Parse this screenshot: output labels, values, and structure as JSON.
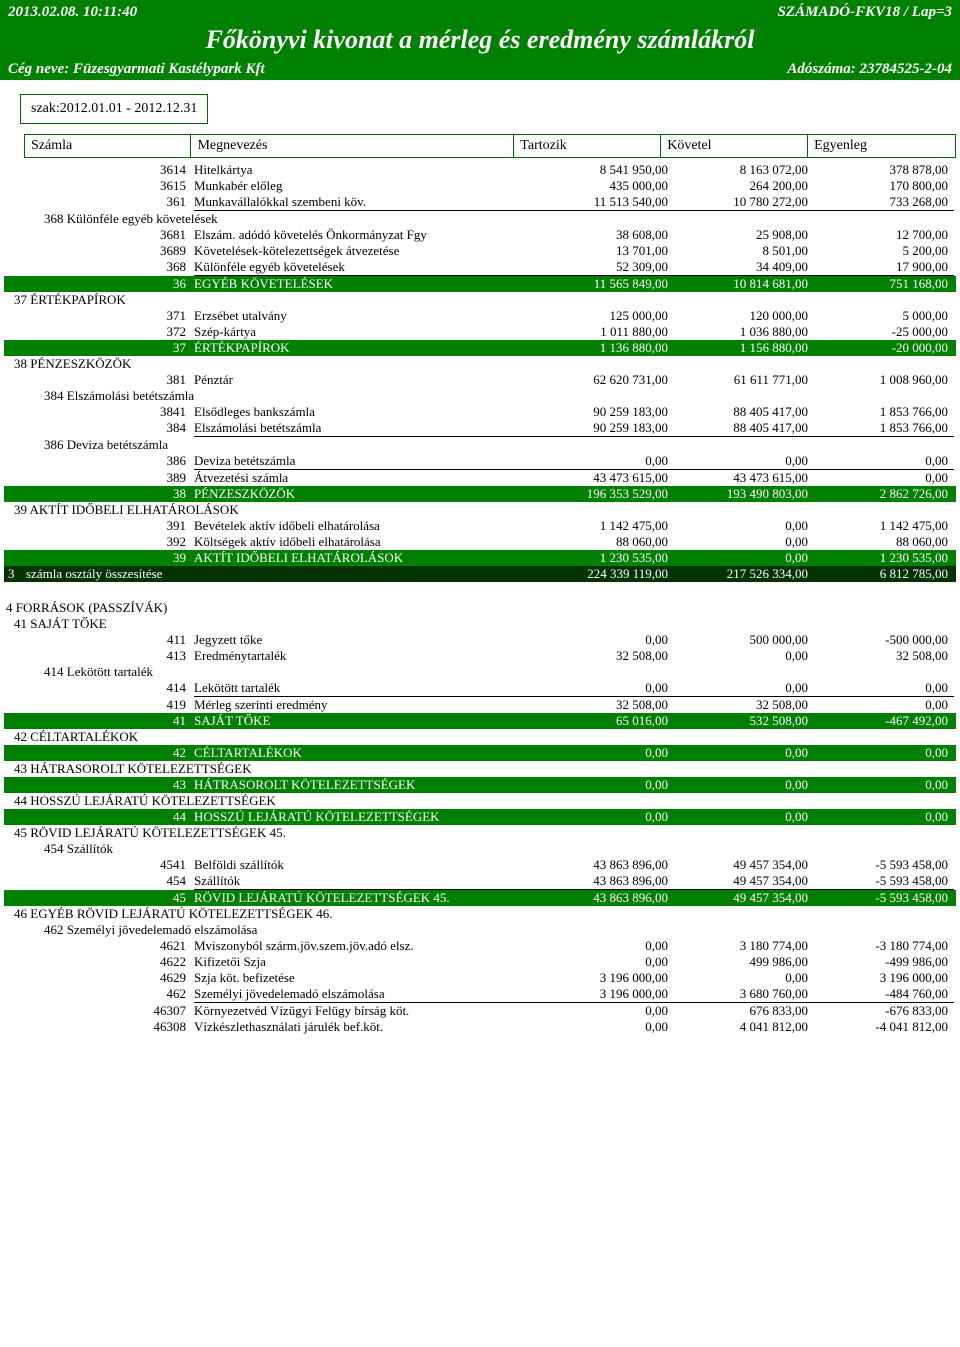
{
  "header": {
    "timestamp": "2013.02.08. 10:11:40",
    "doc_id": "SZÁMADÓ-FKV18 / Lap=3",
    "title": "Főkönyvi kivonat a mérleg és eredmény számlákról",
    "company_label": "Cég neve: Füzesgyarmati Kastélypark Kft",
    "tax_label": "Adószáma: 23784525-2-04"
  },
  "period": "szak:2012.01.01 - 2012.12.31",
  "columns": {
    "c1": "Számla",
    "c2": "Megnevezés",
    "c3": "Tartozik",
    "c4": "Követel",
    "c5": "Egyenleg"
  },
  "rows": [
    {
      "type": "data",
      "code": "3614",
      "name": "Hitelkártya",
      "t": "8 541 950,00",
      "k": "8 163 072,00",
      "e": "378 878,00"
    },
    {
      "type": "data",
      "code": "3615",
      "name": "Munkabér előleg",
      "t": "435 000,00",
      "k": "264 200,00",
      "e": "170 800,00"
    },
    {
      "type": "data",
      "code": "361",
      "name": "Munkavállalókkal szembeni köv.",
      "t": "11 513 540,00",
      "k": "10 780 272,00",
      "e": "733 268,00",
      "ul": true
    },
    {
      "type": "group",
      "label": "368 Különféle egyéb követelések"
    },
    {
      "type": "data",
      "code": "3681",
      "name": "Elszám. adódó követelés Önkormányzat Fgy",
      "t": "38 608,00",
      "k": "25 908,00",
      "e": "12 700,00"
    },
    {
      "type": "data",
      "code": "3689",
      "name": "Követelések-kötelezettségek átvezetése",
      "t": "13 701,00",
      "k": "8 501,00",
      "e": "5 200,00"
    },
    {
      "type": "data",
      "code": "368",
      "name": "Különféle egyéb követelések",
      "t": "52 309,00",
      "k": "34 409,00",
      "e": "17 900,00",
      "ul": true
    },
    {
      "type": "subgreen",
      "code": "36",
      "name": "EGYÉB KÖVETELÉSEK",
      "t": "11 565 849,00",
      "k": "10 814 681,00",
      "e": "751 168,00"
    },
    {
      "type": "section",
      "label": "37 ÉRTÉKPAPÍROK"
    },
    {
      "type": "data",
      "code": "371",
      "name": "Erzsébet utalvány",
      "t": "125 000,00",
      "k": "120 000,00",
      "e": "5 000,00"
    },
    {
      "type": "data",
      "code": "372",
      "name": "Szép-kártya",
      "t": "1 011 880,00",
      "k": "1 036 880,00",
      "e": "-25 000,00"
    },
    {
      "type": "subgreen",
      "code": "37",
      "name": "ÉRTÉKPAPÍROK",
      "t": "1 136 880,00",
      "k": "1 156 880,00",
      "e": "-20 000,00"
    },
    {
      "type": "section",
      "label": "38 PÉNZESZKÖZÖK"
    },
    {
      "type": "data",
      "code": "381",
      "name": "Pénztár",
      "t": "62 620 731,00",
      "k": "61 611 771,00",
      "e": "1 008 960,00"
    },
    {
      "type": "group",
      "label": "384 Elszámolási betétszámla"
    },
    {
      "type": "data",
      "code": "3841",
      "name": "Elsődleges bankszámla",
      "t": "90 259 183,00",
      "k": "88 405 417,00",
      "e": "1 853 766,00"
    },
    {
      "type": "data",
      "code": "384",
      "name": "Elszámolási betétszámla",
      "t": "90 259 183,00",
      "k": "88 405 417,00",
      "e": "1 853 766,00",
      "ul": true
    },
    {
      "type": "group",
      "label": "386 Deviza betétszámla"
    },
    {
      "type": "data",
      "code": "386",
      "name": "Deviza betétszámla",
      "t": "0,00",
      "k": "0,00",
      "e": "0,00",
      "ul": true
    },
    {
      "type": "data",
      "code": "389",
      "name": "Átvezetési számla",
      "t": "43 473 615,00",
      "k": "43 473 615,00",
      "e": "0,00"
    },
    {
      "type": "subgreen",
      "code": "38",
      "name": "PÉNZESZKÖZÖK",
      "t": "196 353 529,00",
      "k": "193 490 803,00",
      "e": "2 862 726,00"
    },
    {
      "type": "section",
      "label": "39 AKTÍT IDŐBELI ELHATÁROLÁSOK"
    },
    {
      "type": "data",
      "code": "391",
      "name": "Bevételek aktív időbeli elhatárolása",
      "t": "1 142 475,00",
      "k": "0,00",
      "e": "1 142 475,00"
    },
    {
      "type": "data",
      "code": "392",
      "name": "Költségek aktív időbeli elhatárolása",
      "t": "88 060,00",
      "k": "0,00",
      "e": "88 060,00"
    },
    {
      "type": "subgreen",
      "code": "39",
      "name": "AKTÍT IDŐBELI ELHATÁROLÁSOK",
      "t": "1 230 535,00",
      "k": "0,00",
      "e": "1 230 535,00"
    },
    {
      "type": "subdark",
      "code": "3",
      "name": "számla osztály összesítése",
      "t": "224 339 119,00",
      "k": "217 526 334,00",
      "e": "6 812 785,00"
    },
    {
      "type": "spacer"
    },
    {
      "type": "top",
      "label": "4 FORRÁSOK (PASSZÍVÁK)"
    },
    {
      "type": "section",
      "label": "41 SAJÁT TŐKE"
    },
    {
      "type": "data",
      "code": "411",
      "name": "Jegyzett tőke",
      "t": "0,00",
      "k": "500 000,00",
      "e": "-500 000,00"
    },
    {
      "type": "data",
      "code": "413",
      "name": "Eredménytartalék",
      "t": "32 508,00",
      "k": "0,00",
      "e": "32 508,00"
    },
    {
      "type": "group",
      "label": "414 Lekötött tartalék"
    },
    {
      "type": "data",
      "code": "414",
      "name": "Lekötött tartalék",
      "t": "0,00",
      "k": "0,00",
      "e": "0,00",
      "ul": true
    },
    {
      "type": "data",
      "code": "419",
      "name": "Mérleg szerinti eredmény",
      "t": "32 508,00",
      "k": "32 508,00",
      "e": "0,00"
    },
    {
      "type": "subgreen",
      "code": "41",
      "name": "SAJÁT TŐKE",
      "t": "65 016,00",
      "k": "532 508,00",
      "e": "-467 492,00"
    },
    {
      "type": "section",
      "label": "42 CÉLTARTALÉKOK"
    },
    {
      "type": "subgreen",
      "code": "42",
      "name": "CÉLTARTALÉKOK",
      "t": "0,00",
      "k": "0,00",
      "e": "0,00"
    },
    {
      "type": "section",
      "label": "43 HÁTRASOROLT KÖTELEZETTSÉGEK"
    },
    {
      "type": "subgreen",
      "code": "43",
      "name": "HÁTRASOROLT KÖTELEZETTSÉGEK",
      "t": "0,00",
      "k": "0,00",
      "e": "0,00"
    },
    {
      "type": "section",
      "label": "44 HOSSZÚ LEJÁRATÚ KÖTELEZETTSÉGEK"
    },
    {
      "type": "subgreen",
      "code": "44",
      "name": "HOSSZÚ LEJÁRATÚ KÖTELEZETTSÉGEK",
      "t": "0,00",
      "k": "0,00",
      "e": "0,00"
    },
    {
      "type": "section",
      "label": "45 RÖVID LEJÁRATÚ KÖTELEZETTSÉGEK 45."
    },
    {
      "type": "group",
      "label": "454 Szállítók"
    },
    {
      "type": "data",
      "code": "4541",
      "name": "Belföldi szállítók",
      "t": "43 863 896,00",
      "k": "49 457 354,00",
      "e": "-5 593 458,00"
    },
    {
      "type": "data",
      "code": "454",
      "name": "Szállítók",
      "t": "43 863 896,00",
      "k": "49 457 354,00",
      "e": "-5 593 458,00",
      "ul": true
    },
    {
      "type": "subgreen",
      "code": "45",
      "name": "RÖVID LEJÁRATÚ KÖTELEZETTSÉGEK 45.",
      "t": "43 863 896,00",
      "k": "49 457 354,00",
      "e": "-5 593 458,00"
    },
    {
      "type": "section",
      "label": "46 EGYÉB RÖVID LEJÁRATÚ KÖTELEZETTSÉGEK 46."
    },
    {
      "type": "group",
      "label": "462 Személyi jövedelemadó elszámolása"
    },
    {
      "type": "data",
      "code": "4621",
      "name": "Mviszonyból szárm.jöv.szem.jöv.adó elsz.",
      "t": "0,00",
      "k": "3 180 774,00",
      "e": "-3 180 774,00"
    },
    {
      "type": "data",
      "code": "4622",
      "name": "Kifizetői Szja",
      "t": "0,00",
      "k": "499 986,00",
      "e": "-499 986,00"
    },
    {
      "type": "data",
      "code": "4629",
      "name": "Szja köt. befizetése",
      "t": "3 196 000,00",
      "k": "0,00",
      "e": "3 196 000,00"
    },
    {
      "type": "data",
      "code": "462",
      "name": "Személyi jövedelemadó elszámolása",
      "t": "3 196 000,00",
      "k": "3 680 760,00",
      "e": "-484 760,00",
      "ul": true
    },
    {
      "type": "data",
      "code": "46307",
      "name": "Környezetvéd Vízügyi Felügy bírság köt.",
      "t": "0,00",
      "k": "676 833,00",
      "e": "-676 833,00"
    },
    {
      "type": "data",
      "code": "46308",
      "name": "Vízkészlethasználati járulék bef.köt.",
      "t": "0,00",
      "k": "4 041 812,00",
      "e": "-4 041 812,00"
    }
  ],
  "colors": {
    "green": "#008000",
    "dark": "#003300"
  }
}
